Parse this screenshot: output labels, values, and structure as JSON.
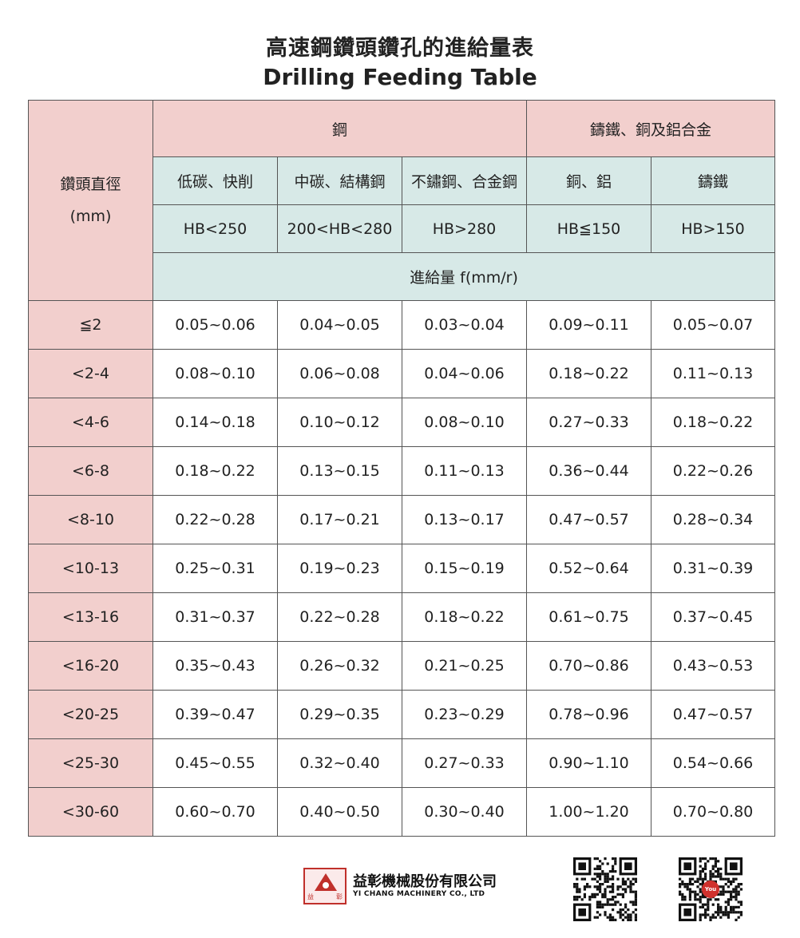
{
  "title": {
    "cn": "高速鋼鑽頭鑽孔的進給量表",
    "en": "Drilling Feeding Table"
  },
  "table": {
    "diameter_label": "鑽頭直徑",
    "diameter_unit": "(mm)",
    "groups": [
      "鋼",
      "鑄鐵、銅及鋁合金"
    ],
    "materials": [
      "低碳、快削",
      "中碳、結構鋼",
      "不鏽鋼、合金鋼",
      "銅、鋁",
      "鑄鐵"
    ],
    "hardness": [
      "HB<250",
      "200<HB<280",
      "HB>280",
      "HB≦150",
      "HB>150"
    ],
    "feed_label": "進給量  f(mm/r)",
    "rows": [
      {
        "d": "≦2",
        "v": [
          "0.05~0.06",
          "0.04~0.05",
          "0.03~0.04",
          "0.09~0.11",
          "0.05~0.07"
        ]
      },
      {
        "d": "<2-4",
        "v": [
          "0.08~0.10",
          "0.06~0.08",
          "0.04~0.06",
          "0.18~0.22",
          "0.11~0.13"
        ]
      },
      {
        "d": "<4-6",
        "v": [
          "0.14~0.18",
          "0.10~0.12",
          "0.08~0.10",
          "0.27~0.33",
          "0.18~0.22"
        ]
      },
      {
        "d": "<6-8",
        "v": [
          "0.18~0.22",
          "0.13~0.15",
          "0.11~0.13",
          "0.36~0.44",
          "0.22~0.26"
        ]
      },
      {
        "d": "<8-10",
        "v": [
          "0.22~0.28",
          "0.17~0.21",
          "0.13~0.17",
          "0.47~0.57",
          "0.28~0.34"
        ]
      },
      {
        "d": "<10-13",
        "v": [
          "0.25~0.31",
          "0.19~0.23",
          "0.15~0.19",
          "0.52~0.64",
          "0.31~0.39"
        ]
      },
      {
        "d": "<13-16",
        "v": [
          "0.31~0.37",
          "0.22~0.28",
          "0.18~0.22",
          "0.61~0.75",
          "0.37~0.45"
        ]
      },
      {
        "d": "<16-20",
        "v": [
          "0.35~0.43",
          "0.26~0.32",
          "0.21~0.25",
          "0.70~0.86",
          "0.43~0.53"
        ]
      },
      {
        "d": "<20-25",
        "v": [
          "0.39~0.47",
          "0.29~0.35",
          "0.23~0.29",
          "0.78~0.96",
          "0.47~0.57"
        ]
      },
      {
        "d": "<25-30",
        "v": [
          "0.45~0.55",
          "0.32~0.40",
          "0.27~0.33",
          "0.90~1.10",
          "0.54~0.66"
        ]
      },
      {
        "d": "<30-60",
        "v": [
          "0.60~0.70",
          "0.40~0.50",
          "0.30~0.40",
          "1.00~1.20",
          "0.70~0.80"
        ]
      }
    ]
  },
  "footer": {
    "company_cn": "益彰機械股份有限公司",
    "company_en": "YI CHANG MACHINERY CO., LTD",
    "logo_chars": [
      "益",
      "彰"
    ],
    "qr_codes": [
      "website-qr-icon",
      "youtube-qr-icon"
    ],
    "youtube_badge": "You"
  },
  "colors": {
    "pink": "#f2cfcd",
    "mint": "#d7e9e7",
    "brand_red": "#c0302b"
  }
}
